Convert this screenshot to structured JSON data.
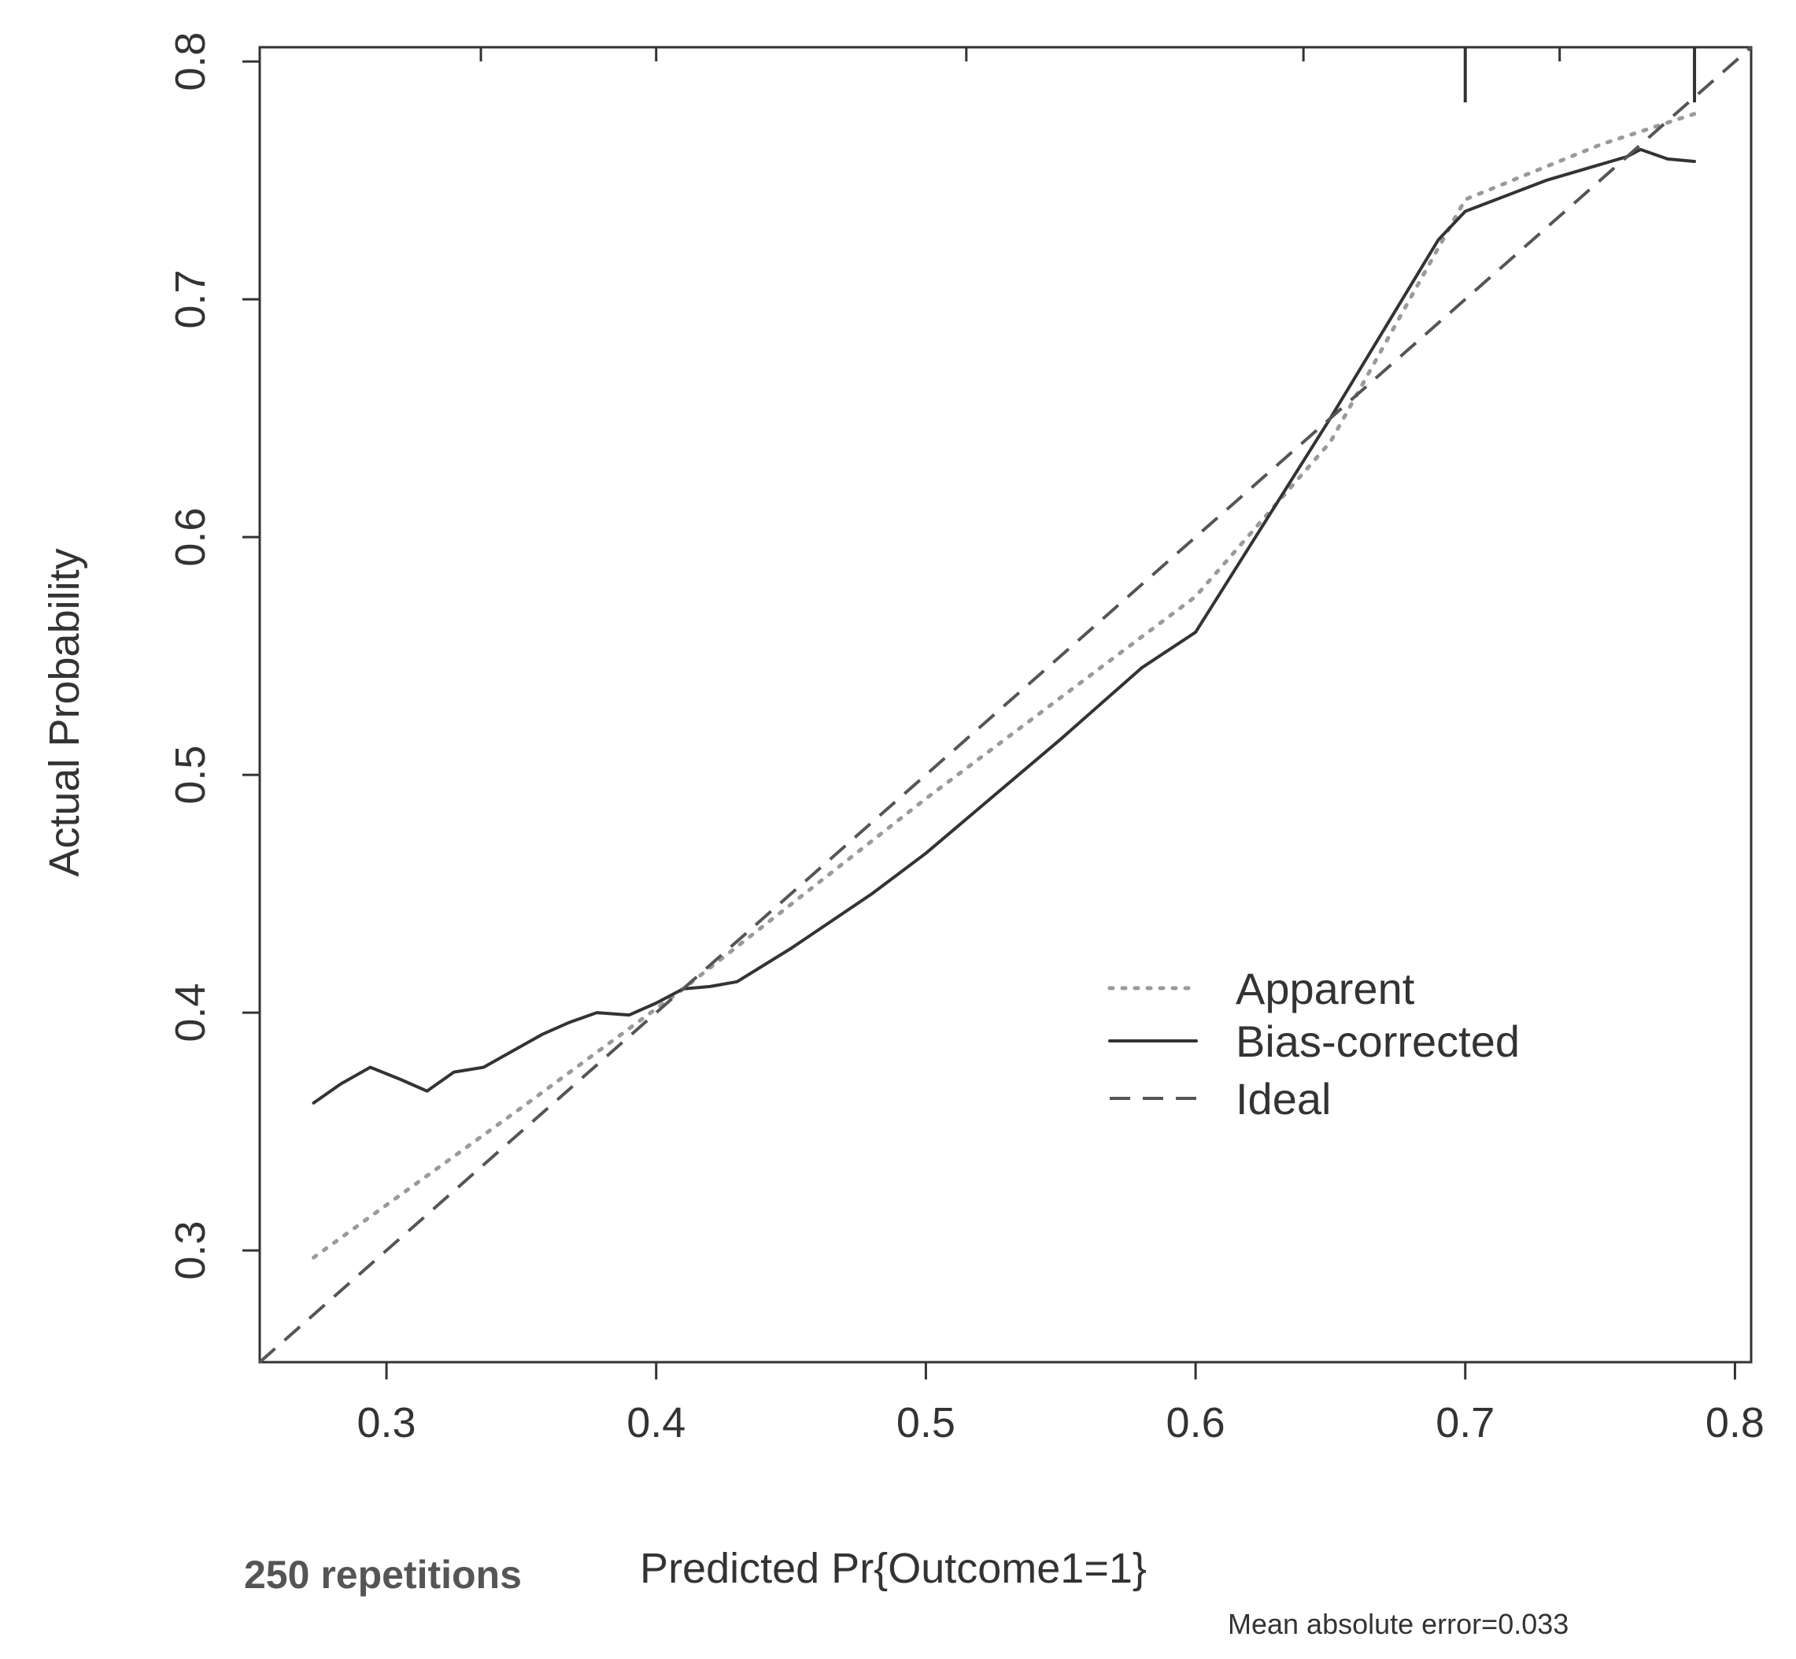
{
  "chart_data": {
    "type": "line",
    "title": "",
    "xlabel": "Predicted Pr{Outcome1=1}",
    "ylabel": "Actual Probability",
    "xlim": [
      0.253,
      0.806
    ],
    "ylim": [
      0.253,
      0.806
    ],
    "xticks": [
      0.3,
      0.4,
      0.5,
      0.6,
      0.7,
      0.8
    ],
    "yticks": [
      0.3,
      0.4,
      0.5,
      0.6,
      0.7,
      0.8
    ],
    "xtick_labels": [
      "0.3",
      "0.4",
      "0.5",
      "0.6",
      "0.7",
      "0.8"
    ],
    "ytick_labels": [
      "0.3",
      "0.4",
      "0.5",
      "0.6",
      "0.7",
      "0.8"
    ],
    "grid": false,
    "legend_position": "center-right",
    "series": [
      {
        "name": "Apparent",
        "style": "dotted",
        "color": "#9a9a9a",
        "x": [
          0.273,
          0.35,
          0.41,
          0.5,
          0.6,
          0.65,
          0.7,
          0.75,
          0.785
        ],
        "y": [
          0.297,
          0.36,
          0.41,
          0.49,
          0.575,
          0.64,
          0.742,
          0.765,
          0.778
        ]
      },
      {
        "name": "Bias-corrected",
        "style": "solid",
        "color": "#333333",
        "x": [
          0.273,
          0.283,
          0.294,
          0.305,
          0.315,
          0.325,
          0.336,
          0.347,
          0.358,
          0.368,
          0.378,
          0.39,
          0.4,
          0.41,
          0.42,
          0.43,
          0.45,
          0.48,
          0.5,
          0.55,
          0.58,
          0.6,
          0.65,
          0.69,
          0.7,
          0.73,
          0.76,
          0.765,
          0.775,
          0.785
        ],
        "y": [
          0.362,
          0.37,
          0.377,
          0.372,
          0.367,
          0.375,
          0.377,
          0.384,
          0.391,
          0.396,
          0.4,
          0.399,
          0.404,
          0.41,
          0.411,
          0.413,
          0.427,
          0.45,
          0.467,
          0.515,
          0.545,
          0.56,
          0.65,
          0.725,
          0.737,
          0.75,
          0.76,
          0.763,
          0.759,
          0.758
        ]
      },
      {
        "name": "Ideal",
        "style": "dashed",
        "color": "#555555",
        "x": [
          0.253,
          0.806
        ],
        "y": [
          0.253,
          0.806
        ]
      }
    ],
    "rug_marks_top_x": [
      0.335,
      0.4,
      0.515,
      0.64,
      0.735,
      0.7,
      0.785
    ],
    "annotations": {
      "repetitions": "250 repetitions",
      "error": "Mean absolute error=0.033"
    }
  }
}
